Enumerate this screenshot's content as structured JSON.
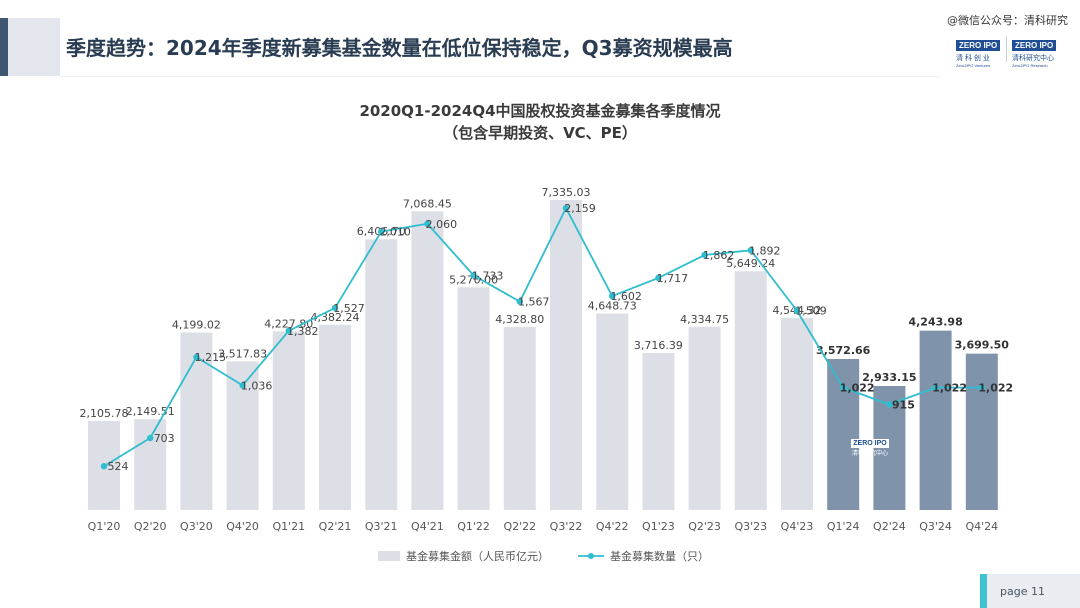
{
  "header": {
    "title": "季度趋势：2024年季度新募集基金数量在低位保持稳定，Q3募资规模最高",
    "watermark": "@微信公众号：清科研究"
  },
  "logos": {
    "left": {
      "badge": "ZERO IPO",
      "cn": "清 科 创 业",
      "en": "Zero2IPO Ventures"
    },
    "right": {
      "badge": "ZERO IPO",
      "cn": "清科研究中心",
      "en": "Zero2IPO Research"
    },
    "chart_stamp": {
      "badge": "ZERO IPO",
      "cn": "清科研究中心"
    }
  },
  "footer": {
    "page_label": "page  11"
  },
  "colors": {
    "bar_default": "#dcdfe6",
    "bar_2024": "#7f93aa",
    "line": "#30bdd0",
    "accent": "#3ec3d0",
    "header_bar": "#3f5670"
  },
  "chart_data": {
    "type": "bar",
    "title": "2020Q1-2024Q4中国股权投资基金募集各季度情况",
    "subtitle": "（包含早期投资、VC、PE）",
    "categories": [
      "Q1'20",
      "Q2'20",
      "Q3'20",
      "Q4'20",
      "Q1'21",
      "Q2'21",
      "Q3'21",
      "Q4'21",
      "Q1'22",
      "Q2'22",
      "Q3'22",
      "Q4'22",
      "Q1'23",
      "Q2'23",
      "Q3'23",
      "Q4'23",
      "Q1'24",
      "Q2'24",
      "Q3'24",
      "Q4'24"
    ],
    "series": [
      {
        "name": "基金募集金额（人民币亿元）",
        "type": "bar",
        "values": [
          2105.78,
          2149.51,
          4199.02,
          3517.83,
          4227.8,
          4382.24,
          6406.7,
          7068.45,
          5270.0,
          4328.8,
          7335.03,
          4648.73,
          3716.39,
          4334.75,
          5649.24,
          4544.32,
          3572.66,
          2933.15,
          4243.98,
          3699.5
        ],
        "labels": [
          "2,105.78",
          "2,149.51",
          "4,199.02",
          "3,517.83",
          "4,227.80",
          "4,382.24",
          "6,406.70",
          "7,068.45",
          "5,270.00",
          "4,328.80",
          "7,335.03",
          "4,648.73",
          "3,716.39",
          "4,334.75",
          "5,649.24",
          "4,544.32",
          "3,572.66",
          "2,933.15",
          "4,243.98",
          "3,699.50"
        ]
      },
      {
        "name": "基金募集数量（只）",
        "type": "line",
        "values": [
          524,
          703,
          1215,
          1036,
          1382,
          1527,
          2010,
          2060,
          1733,
          1567,
          2159,
          1602,
          1717,
          1862,
          1892,
          1509,
          1022,
          915,
          1022,
          1022
        ],
        "labels": [
          "524",
          "703",
          "1,215",
          "1,036",
          "1,382",
          "1,527",
          "2,010",
          "2,060",
          "1,733",
          "1,567",
          "2,159",
          "1,602",
          "1,717",
          "1,862",
          "1,892",
          "1,509",
          "1,022",
          "915",
          "1,022",
          "1,022"
        ]
      }
    ],
    "highlight_from_index": 16,
    "legend_position": "bottom",
    "grid": false
  }
}
